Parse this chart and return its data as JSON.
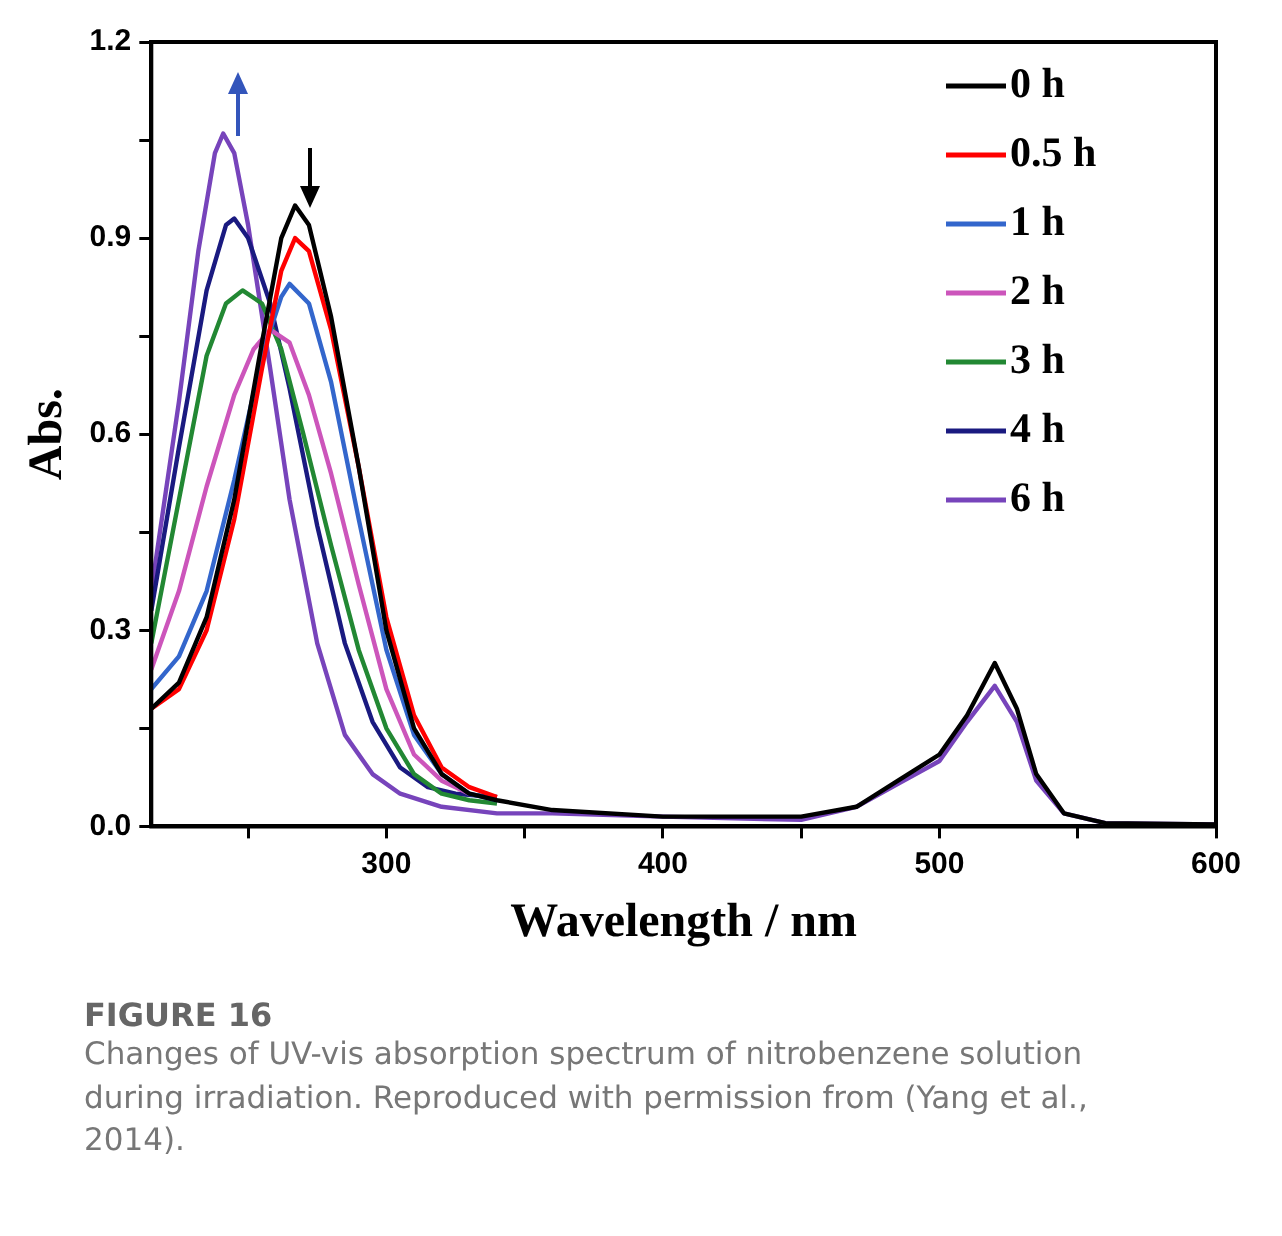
{
  "chart_data": {
    "type": "line",
    "title": "FIGURE 16",
    "xlabel": "Wavelength / nm",
    "ylabel": "Abs.",
    "annotations": [
      "Changes of UV-vis absorption spectrum of nitrobenzene solution during irradiation. Reproduced with permission from (Yang et al., 2014)."
    ],
    "xlim": [
      215,
      600
    ],
    "xticks": [
      {
        "value": 250,
        "label": null
      },
      300,
      {
        "value": 350,
        "label": null
      },
      400,
      {
        "value": 450,
        "label": null
      },
      500,
      {
        "value": 550,
        "label": null
      },
      600
    ],
    "ylim": [
      0,
      1.2
    ],
    "yticks": [
      {
        "value": 0,
        "label": "0.0"
      },
      {
        "value": 0.15,
        "label": null
      },
      0.3,
      {
        "value": 0.45,
        "label": null
      },
      0.6,
      {
        "value": 0.75,
        "label": null
      },
      0.9,
      {
        "value": 1.05,
        "label": null
      },
      1.2
    ],
    "grid": false,
    "legend": "top right",
    "marker": "none",
    "line_style": "solid",
    "series": [
      {
        "name": "0 h",
        "color": "#000000",
        "x": [
          215,
          225,
          235,
          245,
          255,
          262,
          267,
          272,
          280,
          290,
          300,
          310,
          320,
          330,
          340,
          360,
          400,
          450,
          470,
          485,
          500,
          510,
          520,
          528,
          535,
          545,
          560,
          600
        ],
        "values": [
          0.18,
          0.22,
          0.32,
          0.5,
          0.74,
          0.9,
          0.95,
          0.92,
          0.78,
          0.55,
          0.3,
          0.15,
          0.08,
          0.05,
          0.04,
          0.025,
          0.015,
          0.015,
          0.03,
          0.07,
          0.11,
          0.17,
          0.25,
          0.18,
          0.08,
          0.02,
          0.005,
          0.003
        ]
      },
      {
        "name": "0.5 h",
        "color": "#ff0000",
        "x": [
          215,
          225,
          235,
          245,
          255,
          262,
          267,
          272,
          280,
          290,
          300,
          310,
          320,
          330,
          340
        ],
        "values": [
          0.18,
          0.21,
          0.3,
          0.47,
          0.7,
          0.85,
          0.9,
          0.88,
          0.76,
          0.55,
          0.32,
          0.17,
          0.09,
          0.06,
          0.045
        ]
      },
      {
        "name": "1 h",
        "color": "#3366cc",
        "x": [
          215,
          225,
          235,
          245,
          255,
          262,
          265,
          272,
          280,
          290,
          300,
          310,
          320,
          330,
          340
        ],
        "values": [
          0.21,
          0.26,
          0.36,
          0.53,
          0.72,
          0.81,
          0.83,
          0.8,
          0.68,
          0.47,
          0.27,
          0.14,
          0.08,
          0.05,
          0.04
        ]
      },
      {
        "name": "2 h",
        "color": "#cc55bb",
        "x": [
          215,
          225,
          235,
          245,
          252,
          258,
          265,
          272,
          280,
          290,
          300,
          310,
          320,
          330
        ],
        "values": [
          0.24,
          0.36,
          0.52,
          0.66,
          0.73,
          0.76,
          0.74,
          0.66,
          0.54,
          0.37,
          0.21,
          0.11,
          0.07,
          0.05
        ]
      },
      {
        "name": "3 h",
        "color": "#228833",
        "x": [
          215,
          225,
          235,
          242,
          248,
          255,
          262,
          270,
          280,
          290,
          300,
          310,
          320,
          330,
          340
        ],
        "values": [
          0.28,
          0.5,
          0.72,
          0.8,
          0.82,
          0.8,
          0.73,
          0.6,
          0.43,
          0.27,
          0.15,
          0.08,
          0.05,
          0.04,
          0.035
        ]
      },
      {
        "name": "4 h",
        "color": "#1a1a80",
        "x": [
          215,
          225,
          235,
          242,
          245,
          250,
          258,
          265,
          275,
          285,
          295,
          305,
          315,
          325,
          340
        ],
        "values": [
          0.33,
          0.58,
          0.82,
          0.92,
          0.93,
          0.9,
          0.8,
          0.67,
          0.46,
          0.28,
          0.16,
          0.09,
          0.06,
          0.05,
          0.045
        ]
      },
      {
        "name": "6 h",
        "color": "#7744bb",
        "x": [
          215,
          225,
          232,
          238,
          241,
          245,
          250,
          258,
          265,
          275,
          285,
          295,
          305,
          320,
          340,
          360,
          400,
          450,
          470,
          485,
          500,
          510,
          520,
          528,
          535,
          545,
          560,
          600
        ],
        "values": [
          0.36,
          0.65,
          0.88,
          1.03,
          1.06,
          1.03,
          0.92,
          0.7,
          0.5,
          0.28,
          0.14,
          0.08,
          0.05,
          0.03,
          0.02,
          0.02,
          0.015,
          0.01,
          0.03,
          0.065,
          0.1,
          0.16,
          0.215,
          0.16,
          0.07,
          0.02,
          0.005,
          0.003
        ]
      }
    ]
  }
}
